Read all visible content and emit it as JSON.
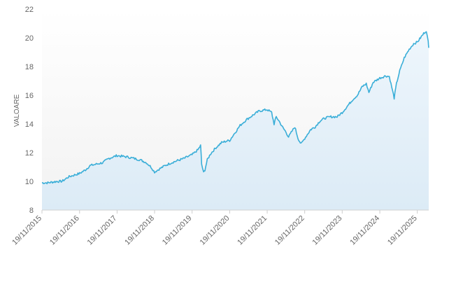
{
  "chart_data": {
    "type": "area",
    "title": "",
    "xlabel": "",
    "ylabel": "VALOARE",
    "ylim": [
      8,
      22
    ],
    "yticks": [
      8,
      10,
      12,
      14,
      16,
      18,
      20,
      22
    ],
    "xticks": [
      "19/11/2015",
      "19/11/2016",
      "19/11/2017",
      "19/11/2018",
      "19/11/2019",
      "19/11/2020",
      "19/11/2021",
      "19/11/2022",
      "19/11/2023",
      "19/11/2024",
      "19/11/2025"
    ],
    "xlim": [
      "2015-11-19",
      "2026-03-10"
    ],
    "grid": false,
    "legend": "none",
    "line_color": "#3aaed8",
    "fill_top_color": "#eef6fc",
    "fill_bottom_color": "#dcebf6",
    "series": [
      {
        "x": [
          "2015-11-19",
          "2016-01-15",
          "2016-03-01",
          "2016-04-15",
          "2016-06-01",
          "2016-08-01",
          "2016-10-01",
          "2016-11-19",
          "2017-01-15",
          "2017-03-01",
          "2017-05-01",
          "2017-07-01",
          "2017-09-01",
          "2017-11-19",
          "2018-01-01",
          "2018-03-01",
          "2018-05-01",
          "2018-07-01",
          "2018-09-01",
          "2018-10-15",
          "2018-11-19",
          "2019-01-01",
          "2019-03-01",
          "2019-05-01",
          "2019-07-01",
          "2019-09-01",
          "2019-11-01",
          "2019-11-19",
          "2020-01-15",
          "2020-02-10",
          "2020-02-20",
          "2020-03-10",
          "2020-03-23",
          "2020-04-15",
          "2020-05-15",
          "2020-07-01",
          "2020-09-01",
          "2020-10-15",
          "2020-11-19",
          "2021-01-01",
          "2021-03-01",
          "2021-05-01",
          "2021-07-01",
          "2021-09-01",
          "2021-11-19",
          "2022-01-01",
          "2022-01-25",
          "2022-02-15",
          "2022-03-15",
          "2022-04-15",
          "2022-05-15",
          "2022-06-15",
          "2022-08-15",
          "2022-09-15",
          "2022-10-15",
          "2022-11-19",
          "2023-01-15",
          "2023-03-01",
          "2023-04-15",
          "2023-06-01",
          "2023-08-01",
          "2023-10-01",
          "2023-11-19",
          "2024-01-15",
          "2024-03-01",
          "2024-04-15",
          "2024-06-01",
          "2024-07-10",
          "2024-08-05",
          "2024-09-15",
          "2024-11-19",
          "2025-01-15",
          "2025-02-20",
          "2025-04-08",
          "2025-04-30",
          "2025-06-01",
          "2025-07-15",
          "2025-09-01",
          "2025-10-15",
          "2025-11-19",
          "2025-12-20",
          "2026-01-20",
          "2026-02-15",
          "2026-03-05",
          "2026-03-10"
        ],
        "y": [
          9.9,
          9.9,
          9.95,
          10.0,
          10.0,
          10.3,
          10.45,
          10.55,
          10.8,
          11.1,
          11.2,
          11.3,
          11.6,
          11.8,
          11.75,
          11.7,
          11.6,
          11.5,
          11.3,
          11.0,
          10.65,
          10.85,
          11.1,
          11.3,
          11.45,
          11.6,
          11.8,
          11.85,
          12.2,
          12.5,
          11.2,
          10.6,
          10.8,
          11.5,
          11.9,
          12.3,
          12.7,
          12.8,
          12.85,
          13.3,
          13.9,
          14.3,
          14.6,
          14.9,
          15.0,
          14.8,
          14.0,
          14.5,
          14.2,
          13.8,
          13.5,
          13.1,
          13.8,
          13.0,
          12.6,
          13.0,
          13.6,
          13.8,
          14.2,
          14.4,
          14.5,
          14.5,
          14.8,
          15.3,
          15.7,
          16.0,
          16.6,
          16.8,
          16.2,
          16.9,
          17.2,
          17.35,
          17.3,
          15.8,
          16.8,
          17.7,
          18.6,
          19.2,
          19.6,
          19.7,
          20.0,
          20.3,
          20.5,
          19.7,
          19.3
        ]
      }
    ]
  }
}
